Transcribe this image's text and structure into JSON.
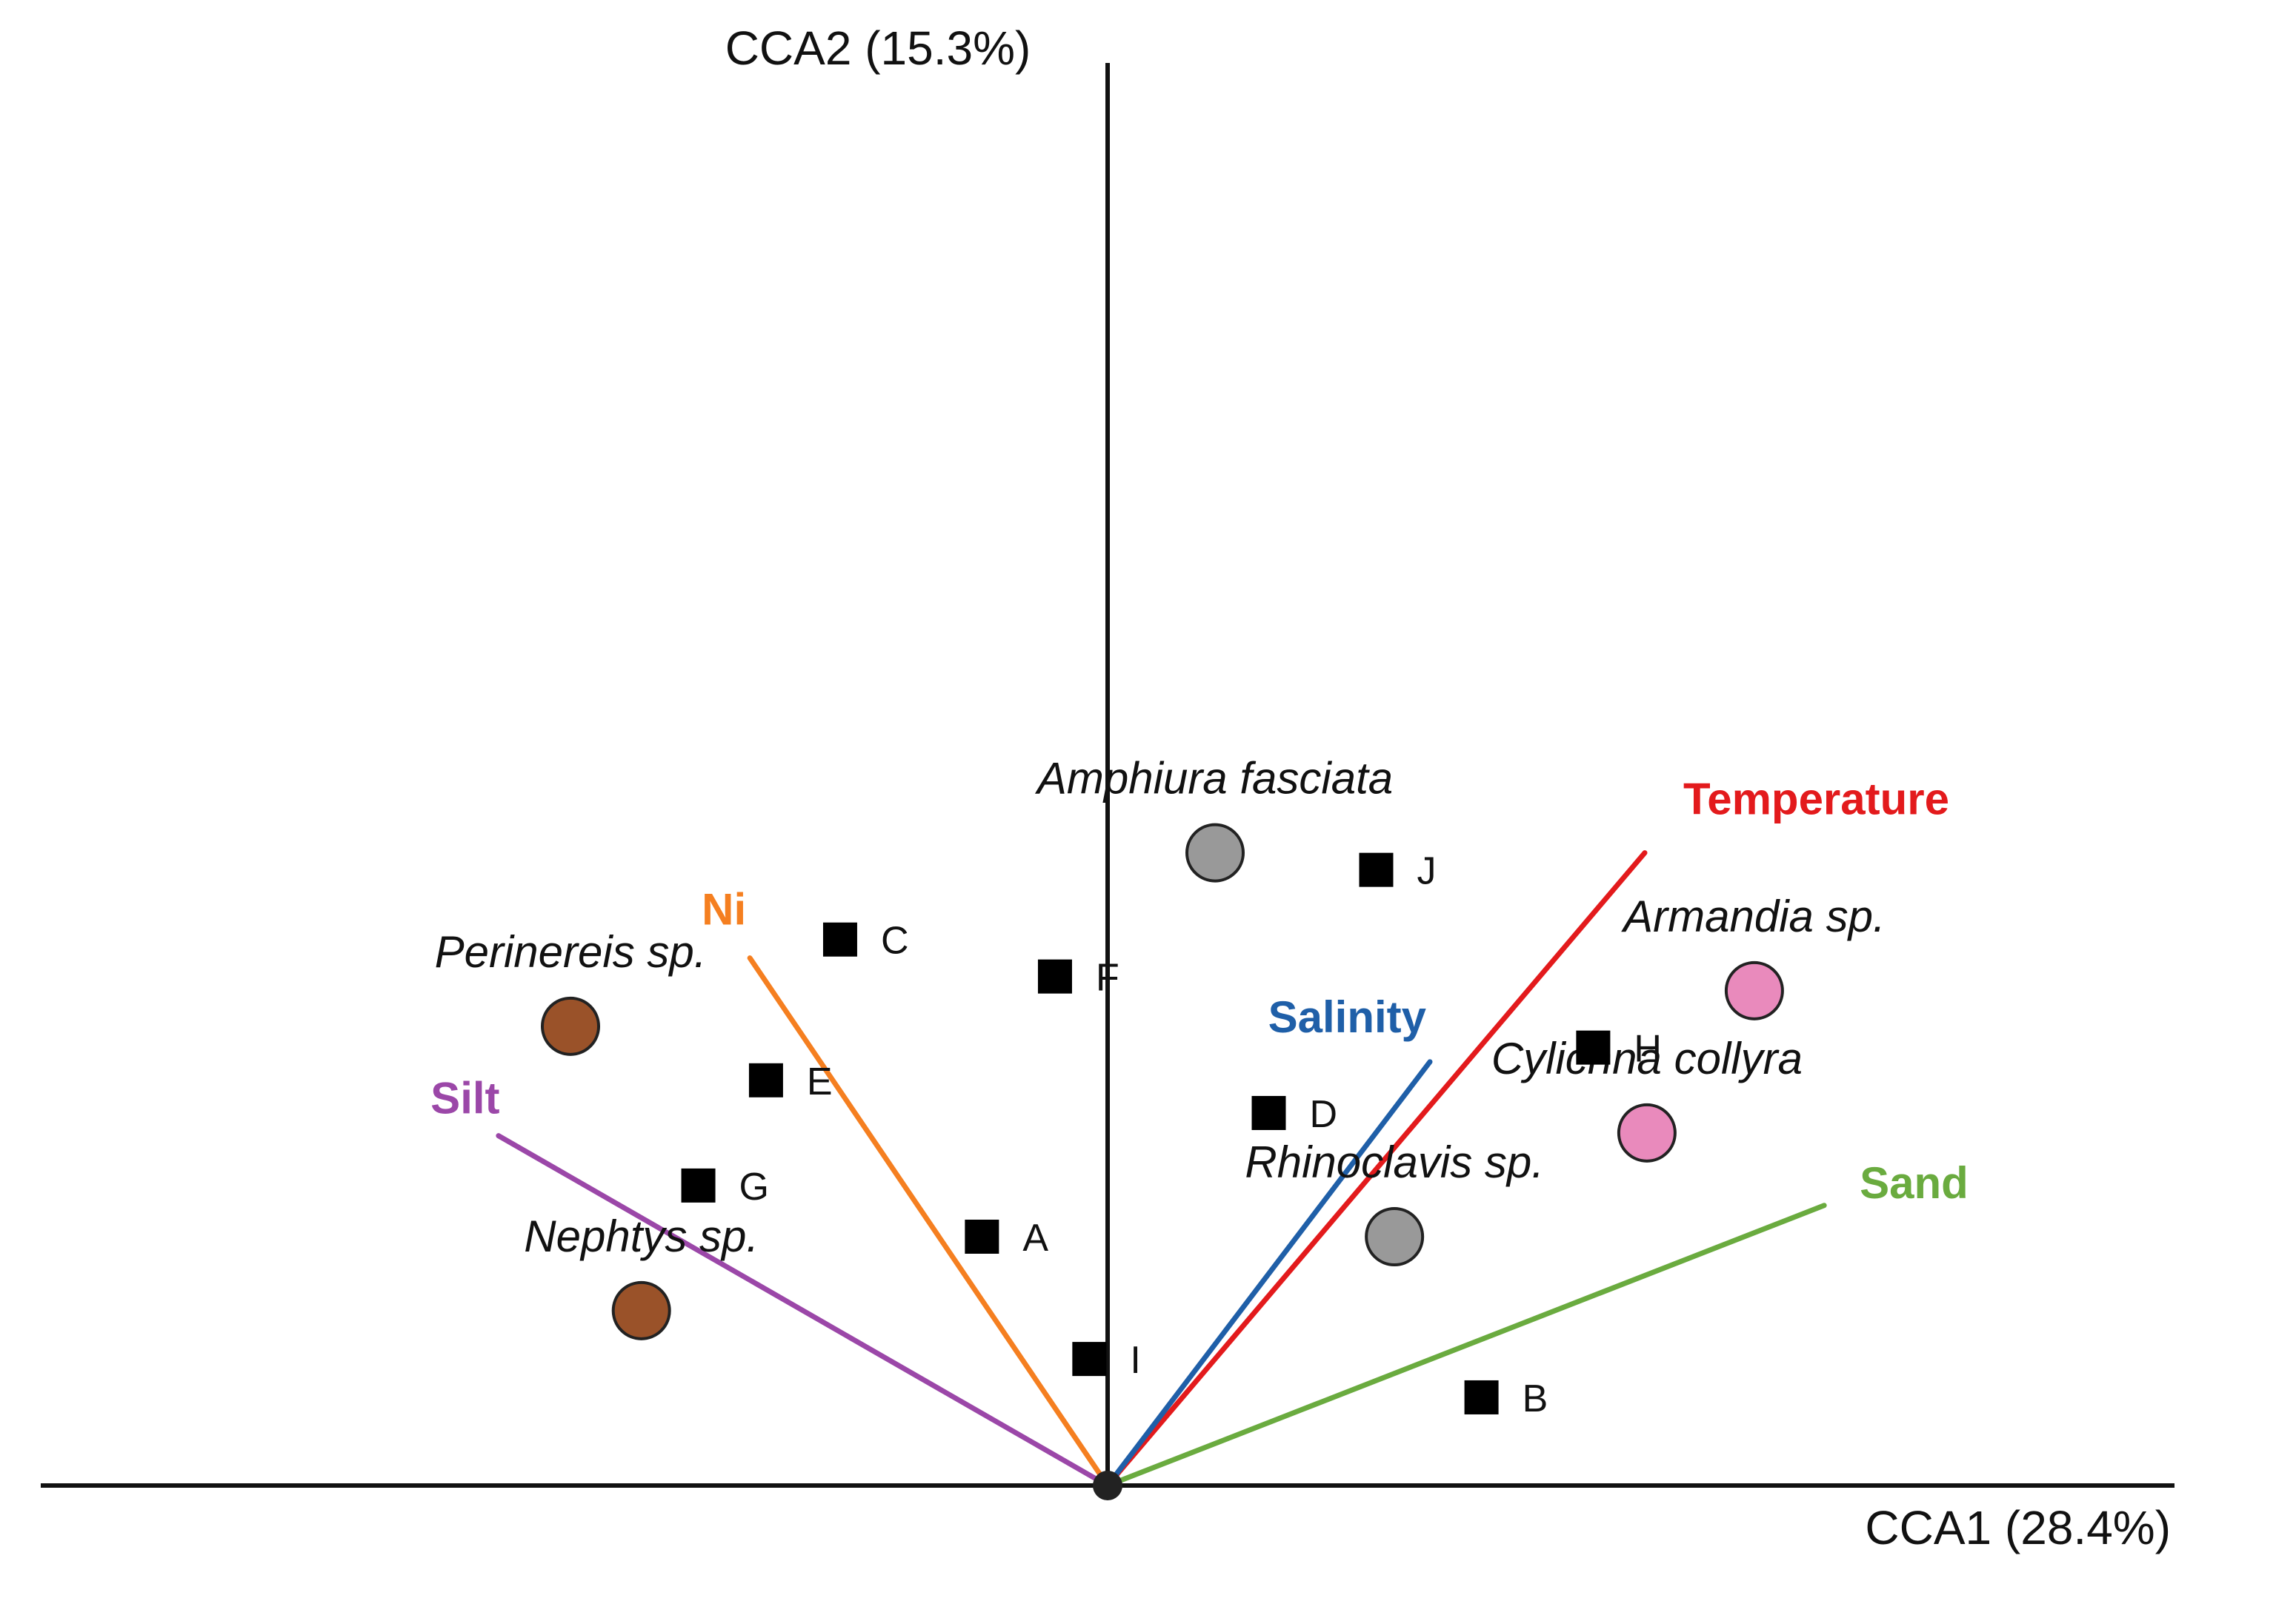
{
  "chart_data": {
    "type": "triplot",
    "title": "",
    "xlabel": "CCA1 (28.4%)",
    "ylabel": "CCA2 (15.3%)",
    "xlim": [
      -1.0,
      1.0
    ],
    "ylim": [
      0.0,
      1.0
    ],
    "grid": false,
    "sites": [
      {
        "name": "A",
        "x": -0.117,
        "y": 0.175
      },
      {
        "name": "B",
        "x": 0.348,
        "y": 0.062
      },
      {
        "name": "C",
        "x": -0.249,
        "y": 0.384
      },
      {
        "name": "D",
        "x": 0.15,
        "y": 0.262
      },
      {
        "name": "E",
        "x": -0.318,
        "y": 0.285
      },
      {
        "name": "F",
        "x": -0.049,
        "y": 0.358
      },
      {
        "name": "G",
        "x": -0.381,
        "y": 0.211
      },
      {
        "name": "H",
        "x": 0.452,
        "y": 0.308
      },
      {
        "name": "I",
        "x": -0.017,
        "y": 0.089
      },
      {
        "name": "J",
        "x": 0.25,
        "y": 0.433
      }
    ],
    "species": [
      {
        "name": "Amphiura fasciata",
        "x": 0.1,
        "y": 0.445,
        "color": "#999999"
      },
      {
        "name": "Armandia sp.",
        "x": 0.602,
        "y": 0.348,
        "color": "#e98abc"
      },
      {
        "name": "Cylichna collyra",
        "x": 0.502,
        "y": 0.248,
        "color": "#e98abc"
      },
      {
        "name": "Rhinoclavis sp.",
        "x": 0.267,
        "y": 0.175,
        "color": "#999999"
      },
      {
        "name": "Perinereis sp.",
        "x": -0.5,
        "y": 0.323,
        "color": "#9a5229"
      },
      {
        "name": "Nephtys sp.",
        "x": -0.434,
        "y": 0.123,
        "color": "#9a5229"
      }
    ],
    "environmental_vectors": [
      {
        "name": "Temperature",
        "x": 0.5,
        "y": 0.445,
        "color": "#e31a1c"
      },
      {
        "name": "Salinity",
        "x": 0.3,
        "y": 0.298,
        "color": "#1f5fa8"
      },
      {
        "name": "Sand",
        "x": 0.667,
        "y": 0.197,
        "color": "#6aab3f"
      },
      {
        "name": "Ni",
        "x": -0.333,
        "y": 0.371,
        "color": "#f57f20"
      },
      {
        "name": "Silt",
        "x": -0.567,
        "y": 0.246,
        "color": "#9b47a8"
      }
    ]
  }
}
